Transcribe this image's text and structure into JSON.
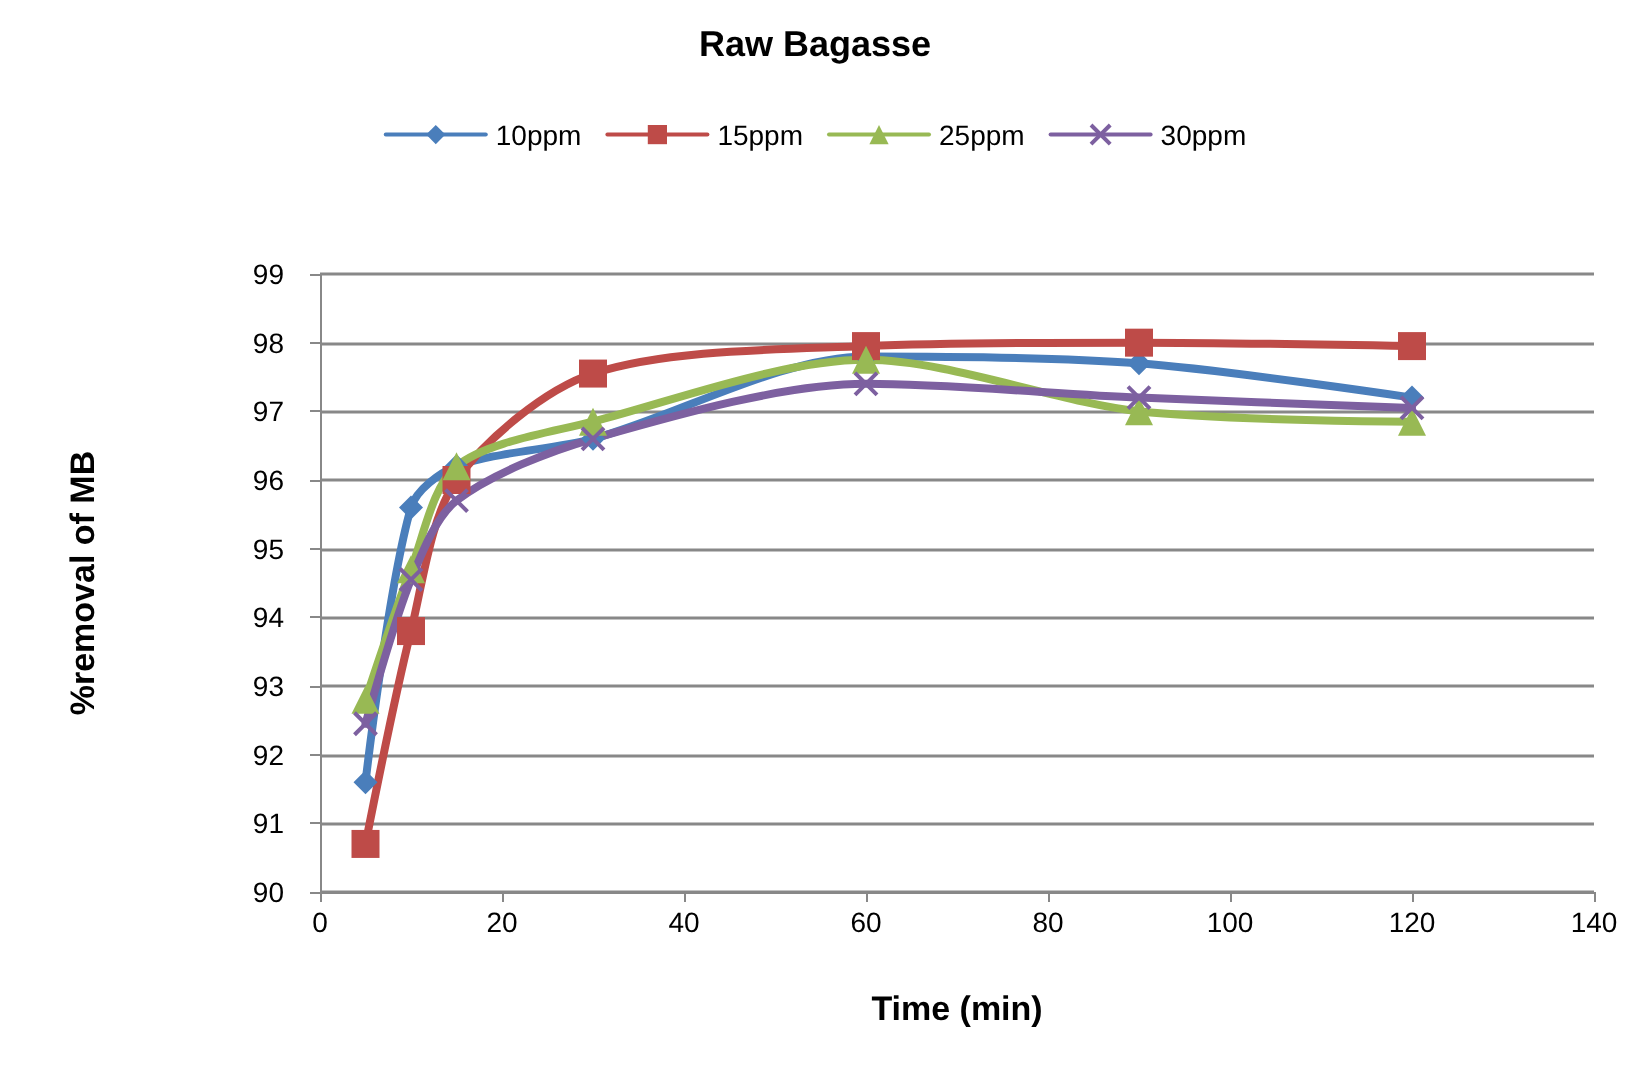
{
  "chart_data": {
    "type": "line",
    "title": "Raw Bagasse",
    "xlabel": "Time (min)",
    "ylabel": "%removal of MB",
    "x": [
      5,
      10,
      15,
      30,
      60,
      90,
      120
    ],
    "series": [
      {
        "name": "10ppm",
        "color": "#4a7ebb",
        "marker": "diamond",
        "values": [
          91.6,
          95.6,
          96.2,
          96.6,
          97.8,
          97.7,
          97.2
        ]
      },
      {
        "name": "15ppm",
        "color": "#be4b48",
        "marker": "square",
        "values": [
          90.7,
          93.8,
          96.0,
          97.55,
          97.95,
          98.0,
          97.95
        ]
      },
      {
        "name": "25ppm",
        "color": "#98b954",
        "marker": "triangle",
        "values": [
          92.8,
          94.7,
          96.2,
          96.85,
          97.75,
          97.0,
          96.85
        ]
      },
      {
        "name": "30ppm",
        "color": "#7d60a0",
        "marker": "cross",
        "values": [
          92.45,
          94.55,
          95.7,
          96.6,
          97.4,
          97.2,
          97.05
        ]
      }
    ],
    "xlim": [
      0,
      140
    ],
    "xticks": [
      0,
      20,
      40,
      60,
      80,
      100,
      120,
      140
    ],
    "ylim": [
      90,
      99
    ],
    "yticks": [
      90,
      91,
      92,
      93,
      94,
      95,
      96,
      97,
      98,
      99
    ],
    "grid": "y",
    "legend": "top"
  }
}
